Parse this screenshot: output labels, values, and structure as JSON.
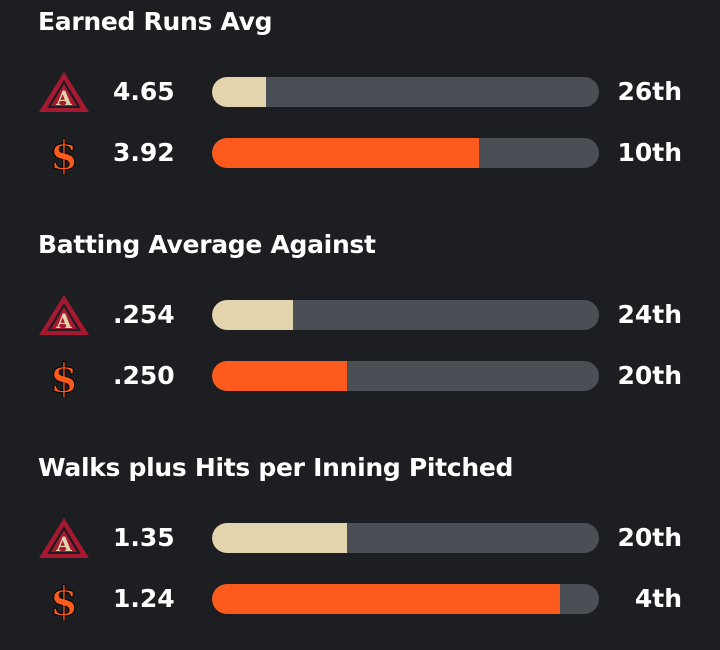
{
  "colors": {
    "background": "#1d1e22",
    "track": "#4a4f55",
    "dbacks_fill": "#e3d4ad",
    "giants_fill": "#fd5a1e"
  },
  "teams": {
    "dbacks": {
      "icon": "arizona-diamondbacks-logo"
    },
    "giants": {
      "icon": "san-francisco-giants-logo"
    }
  },
  "stats": [
    {
      "title": "Earned Runs Avg",
      "rows": [
        {
          "team": "dbacks",
          "value": "4.65",
          "rank": "26th",
          "fill": 0.14
        },
        {
          "team": "giants",
          "value": "3.92",
          "rank": "10th",
          "fill": 0.69
        }
      ]
    },
    {
      "title": "Batting Average Against",
      "rows": [
        {
          "team": "dbacks",
          "value": ".254",
          "rank": "24th",
          "fill": 0.21
        },
        {
          "team": "giants",
          "value": ".250",
          "rank": "20th",
          "fill": 0.35
        }
      ]
    },
    {
      "title": "Walks plus Hits per Inning Pitched",
      "rows": [
        {
          "team": "dbacks",
          "value": "1.35",
          "rank": "20th",
          "fill": 0.35
        },
        {
          "team": "giants",
          "value": "1.24",
          "rank": "4th",
          "fill": 0.9
        }
      ]
    }
  ]
}
